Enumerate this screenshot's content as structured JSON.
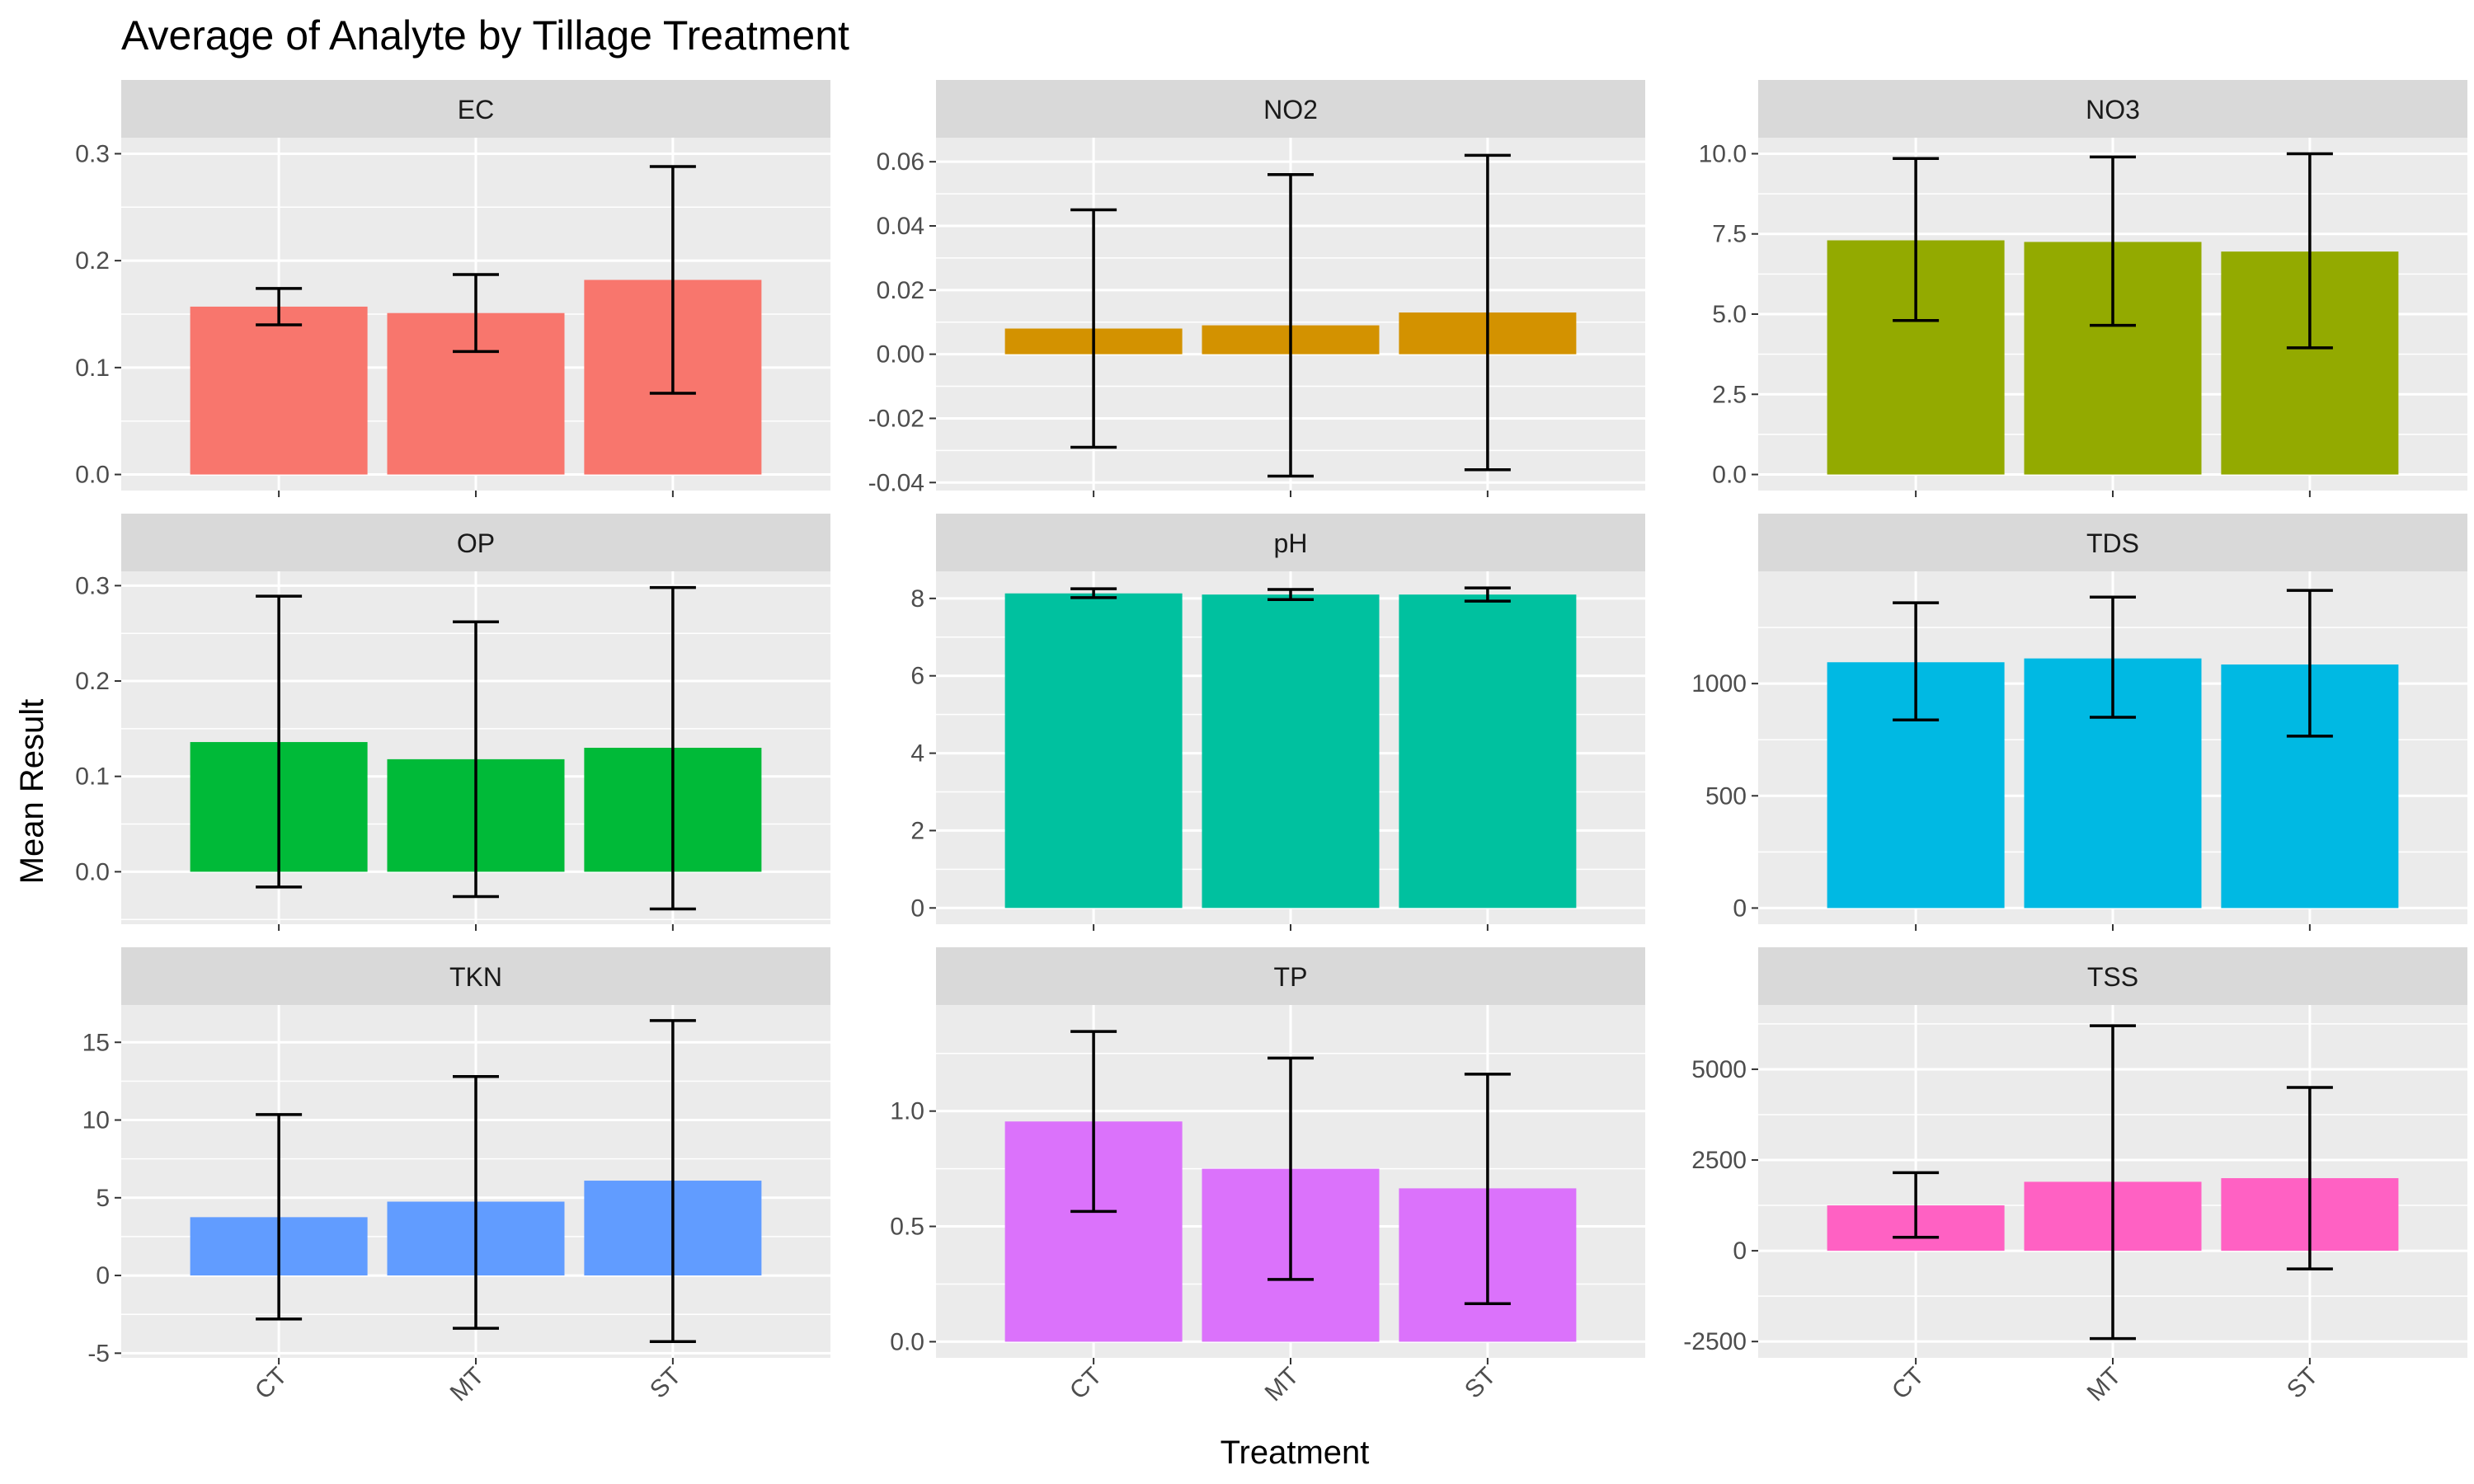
{
  "title": "Average of Analyte by Tillage Treatment",
  "xlabel": "Treatment",
  "ylabel": "Mean Result",
  "chart_data": {
    "type": "bar",
    "title": "Average of Analyte by Tillage Treatment",
    "xlabel": "Treatment",
    "ylabel": "Mean Result",
    "categories": [
      "CT",
      "MT",
      "ST"
    ],
    "facets": [
      {
        "name": "EC",
        "color": "#F8766D",
        "ylim": [
          -0.015,
          0.315
        ],
        "yticks": [
          0.0,
          0.1,
          0.2,
          0.3
        ],
        "tick_labels": [
          "0.0",
          "0.1",
          "0.2",
          "0.3"
        ],
        "values": [
          0.157,
          0.151,
          0.182
        ],
        "err_low": [
          0.14,
          0.115,
          0.076
        ],
        "err_high": [
          0.174,
          0.187,
          0.288
        ]
      },
      {
        "name": "NO2",
        "color": "#D39200",
        "ylim": [
          -0.0425,
          0.0675
        ],
        "yticks": [
          -0.04,
          -0.02,
          0.0,
          0.02,
          0.04,
          0.06
        ],
        "tick_labels": [
          "-0.04",
          "-0.02",
          "0.00",
          "0.02",
          "0.04",
          "0.06"
        ],
        "values": [
          0.008,
          0.009,
          0.013
        ],
        "err_low": [
          -0.029,
          -0.038,
          -0.036
        ],
        "err_high": [
          0.045,
          0.056,
          0.062
        ]
      },
      {
        "name": "NO3",
        "color": "#93AA00",
        "ylim": [
          -0.5,
          10.5
        ],
        "yticks": [
          0.0,
          2.5,
          5.0,
          7.5,
          10.0
        ],
        "tick_labels": [
          "0.0",
          "2.5",
          "5.0",
          "7.5",
          "10.0"
        ],
        "values": [
          7.3,
          7.25,
          6.95
        ],
        "err_low": [
          4.8,
          4.65,
          3.95
        ],
        "err_high": [
          9.85,
          9.9,
          10.0
        ]
      },
      {
        "name": "OP",
        "color": "#00BA38",
        "ylim": [
          -0.055,
          0.315
        ],
        "yticks": [
          0.0,
          0.1,
          0.2,
          0.3
        ],
        "tick_labels": [
          "0.0",
          "0.1",
          "0.2",
          "0.3"
        ],
        "values": [
          0.136,
          0.118,
          0.13
        ],
        "err_low": [
          -0.016,
          -0.026,
          -0.039
        ],
        "err_high": [
          0.289,
          0.262,
          0.298
        ]
      },
      {
        "name": "pH",
        "color": "#00C19F",
        "ylim": [
          -0.42,
          8.7
        ],
        "yticks": [
          0,
          2,
          4,
          6,
          8
        ],
        "tick_labels": [
          "0",
          "2",
          "4",
          "6",
          "8"
        ],
        "values": [
          8.13,
          8.1,
          8.1
        ],
        "err_low": [
          8.02,
          7.97,
          7.93
        ],
        "err_high": [
          8.25,
          8.23,
          8.27
        ]
      },
      {
        "name": "TDS",
        "color": "#00B9E3",
        "ylim": [
          -72,
          1500
        ],
        "yticks": [
          0,
          500,
          1000
        ],
        "tick_labels": [
          "0",
          "500",
          "1000"
        ],
        "values": [
          1095,
          1112,
          1085
        ],
        "err_low": [
          838,
          850,
          766
        ],
        "err_high": [
          1360,
          1385,
          1415
        ]
      },
      {
        "name": "TKN",
        "color": "#619CFF",
        "ylim": [
          -5.3,
          17.4
        ],
        "yticks": [
          -5,
          0,
          5,
          10,
          15
        ],
        "tick_labels": [
          "-5",
          "0",
          "5",
          "10",
          "15"
        ],
        "values": [
          3.75,
          4.75,
          6.1
        ],
        "err_low": [
          -2.8,
          -3.4,
          -4.25
        ],
        "err_high": [
          10.35,
          12.8,
          16.4
        ]
      },
      {
        "name": "TP",
        "color": "#DB72FB",
        "ylim": [
          -0.07,
          1.46
        ],
        "yticks": [
          0.0,
          0.5,
          1.0
        ],
        "tick_labels": [
          "0.0",
          "0.5",
          "1.0"
        ],
        "values": [
          0.955,
          0.75,
          0.665
        ],
        "err_low": [
          0.565,
          0.27,
          0.165
        ],
        "err_high": [
          1.345,
          1.23,
          1.16
        ]
      },
      {
        "name": "TSS",
        "color": "#FF61C3",
        "ylim": [
          -2950,
          6770
        ],
        "yticks": [
          -2500,
          0,
          2500,
          5000
        ],
        "tick_labels": [
          "-2500",
          "0",
          "2500",
          "5000"
        ],
        "values": [
          1250,
          1900,
          2000
        ],
        "err_low": [
          370,
          -2420,
          -500
        ],
        "err_high": [
          2150,
          6200,
          4500
        ]
      }
    ]
  }
}
